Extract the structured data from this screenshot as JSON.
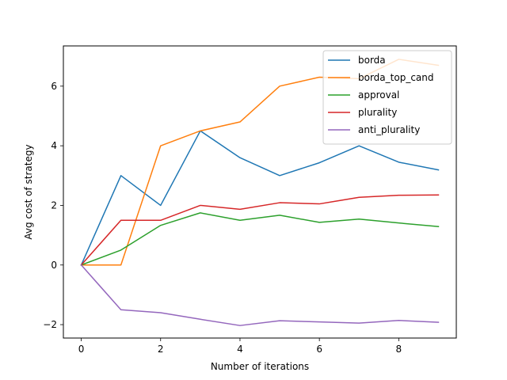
{
  "chart_data": {
    "type": "line",
    "title": "",
    "xlabel": "Number of iterations",
    "ylabel": "Avg cost of strategy",
    "xlim": [
      -0.45,
      9.45
    ],
    "ylim": [
      -2.45,
      7.35
    ],
    "xticks": [
      0,
      2,
      4,
      6,
      8
    ],
    "yticks": [
      -2,
      0,
      2,
      4,
      6
    ],
    "xtick_labels": [
      "0",
      "2",
      "4",
      "6",
      "8"
    ],
    "ytick_labels": [
      "−2",
      "0",
      "2",
      "4",
      "6"
    ],
    "x": [
      0,
      1,
      2,
      3,
      4,
      5,
      6,
      7,
      8,
      9
    ],
    "legend_position": "top-right",
    "grid": false,
    "series": [
      {
        "name": "borda",
        "color": "#1f77b4",
        "values": [
          0,
          3.0,
          2.0,
          4.5,
          3.6,
          3.0,
          3.43,
          4.0,
          3.45,
          3.19
        ]
      },
      {
        "name": "borda_top_cand",
        "color": "#ff7f0e",
        "values": [
          0,
          0,
          4.0,
          4.5,
          4.8,
          6.0,
          6.3,
          6.25,
          6.9,
          6.7
        ]
      },
      {
        "name": "approval",
        "color": "#2ca02c",
        "values": [
          0,
          0.5,
          1.33,
          1.75,
          1.5,
          1.67,
          1.43,
          1.54,
          1.41,
          1.29
        ]
      },
      {
        "name": "plurality",
        "color": "#d62728",
        "values": [
          0,
          1.5,
          1.5,
          2.0,
          1.87,
          2.09,
          2.05,
          2.27,
          2.34,
          2.35
        ]
      },
      {
        "name": "anti_plurality",
        "color": "#9467bd",
        "values": [
          0,
          -1.5,
          -1.6,
          -1.82,
          -2.03,
          -1.87,
          -1.91,
          -1.95,
          -1.86,
          -1.92
        ]
      }
    ]
  }
}
